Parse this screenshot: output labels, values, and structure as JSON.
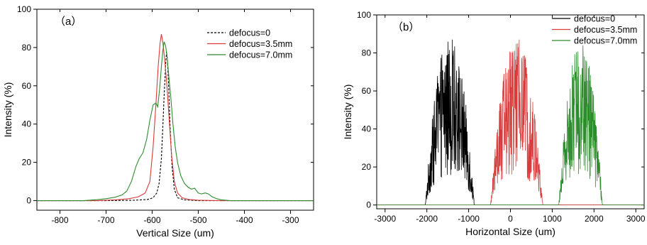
{
  "chart_data": [
    {
      "type": "line",
      "panel_label": "（a）",
      "xlabel": "Vertical Size (um)",
      "ylabel": "Intensity (%)",
      "xlim": [
        -850,
        -250
      ],
      "ylim": [
        -5,
        100
      ],
      "xticks": [
        -800,
        -700,
        -600,
        -500,
        -400,
        -300
      ],
      "yticks": [
        0,
        20,
        40,
        60,
        80,
        100
      ],
      "legend_position": "top-right",
      "series": [
        {
          "name": "defocus=0",
          "color": "#000000",
          "dash": "dashed",
          "points": [
            [
              -850,
              0
            ],
            [
              -700,
              0
            ],
            [
              -640,
              0.2
            ],
            [
              -610,
              0.6
            ],
            [
              -598,
              1.5
            ],
            [
              -590,
              4
            ],
            [
              -585,
              9
            ],
            [
              -580,
              22
            ],
            [
              -577,
              38
            ],
            [
              -574,
              55
            ],
            [
              -571,
              70
            ],
            [
              -569,
              78
            ],
            [
              -567,
              74
            ],
            [
              -564,
              58
            ],
            [
              -561,
              38
            ],
            [
              -557,
              18
            ],
            [
              -552,
              6
            ],
            [
              -545,
              1.5
            ],
            [
              -530,
              0.4
            ],
            [
              -500,
              0
            ],
            [
              -250,
              0
            ]
          ]
        },
        {
          "name": "defocus=3.5mm",
          "color": "#d93a3a",
          "dash": "solid",
          "points": [
            [
              -850,
              0
            ],
            [
              -720,
              0
            ],
            [
              -680,
              0.4
            ],
            [
              -650,
              1
            ],
            [
              -630,
              2
            ],
            [
              -615,
              4
            ],
            [
              -605,
              10
            ],
            [
              -598,
              28
            ],
            [
              -592,
              50
            ],
            [
              -587,
              70
            ],
            [
              -583,
              82
            ],
            [
              -580,
              87
            ],
            [
              -577,
              83
            ],
            [
              -573,
              74
            ],
            [
              -568,
              60
            ],
            [
              -563,
              42
            ],
            [
              -558,
              24
            ],
            [
              -552,
              10
            ],
            [
              -545,
              4
            ],
            [
              -535,
              1.5
            ],
            [
              -520,
              0.6
            ],
            [
              -500,
              0.2
            ],
            [
              -450,
              0
            ],
            [
              -250,
              0
            ]
          ]
        },
        {
          "name": "defocus=7.0mm",
          "color": "#2e8b2e",
          "dash": "solid",
          "points": [
            [
              -850,
              0
            ],
            [
              -750,
              0
            ],
            [
              -720,
              0.5
            ],
            [
              -700,
              1
            ],
            [
              -680,
              1.8
            ],
            [
              -665,
              3
            ],
            [
              -655,
              5
            ],
            [
              -645,
              10
            ],
            [
              -635,
              18
            ],
            [
              -628,
              22
            ],
            [
              -620,
              25
            ],
            [
              -612,
              32
            ],
            [
              -605,
              42
            ],
            [
              -598,
              50
            ],
            [
              -592,
              51
            ],
            [
              -588,
              49
            ],
            [
              -584,
              58
            ],
            [
              -580,
              70
            ],
            [
              -577,
              78
            ],
            [
              -574,
              83
            ],
            [
              -571,
              81
            ],
            [
              -568,
              76
            ],
            [
              -564,
              65
            ],
            [
              -560,
              55
            ],
            [
              -555,
              40
            ],
            [
              -550,
              28
            ],
            [
              -545,
              20
            ],
            [
              -538,
              13
            ],
            [
              -530,
              9
            ],
            [
              -522,
              7
            ],
            [
              -515,
              6
            ],
            [
              -508,
              6.5
            ],
            [
              -500,
              4
            ],
            [
              -493,
              3.5
            ],
            [
              -485,
              4
            ],
            [
              -478,
              3.5
            ],
            [
              -470,
              2
            ],
            [
              -460,
              1
            ],
            [
              -450,
              0.4
            ],
            [
              -430,
              0
            ],
            [
              -250,
              0
            ]
          ]
        }
      ]
    },
    {
      "type": "line",
      "panel_label": "（b）",
      "xlabel": "Horizontal Size (um)",
      "ylabel": "Intensity (%)",
      "xlim": [
        -3200,
        3200
      ],
      "ylim": [
        -2,
        100
      ],
      "xticks": [
        -3000,
        -2000,
        -1000,
        0,
        1000,
        2000,
        3000
      ],
      "yticks": [
        0,
        20,
        40,
        60,
        80,
        100
      ],
      "legend_position": "top-right",
      "series": [
        {
          "name": "defocus=0",
          "color": "#000000",
          "dash": "solid",
          "center": -1450,
          "width": 470,
          "peak": 87
        },
        {
          "name": "defocus=3.5mm",
          "color": "#d93a3a",
          "dash": "solid",
          "center": 150,
          "width": 500,
          "peak": 87
        },
        {
          "name": "defocus=7.0mm",
          "color": "#2e8b2e",
          "dash": "solid",
          "center": 1680,
          "width": 420,
          "peak": 84
        }
      ]
    }
  ]
}
